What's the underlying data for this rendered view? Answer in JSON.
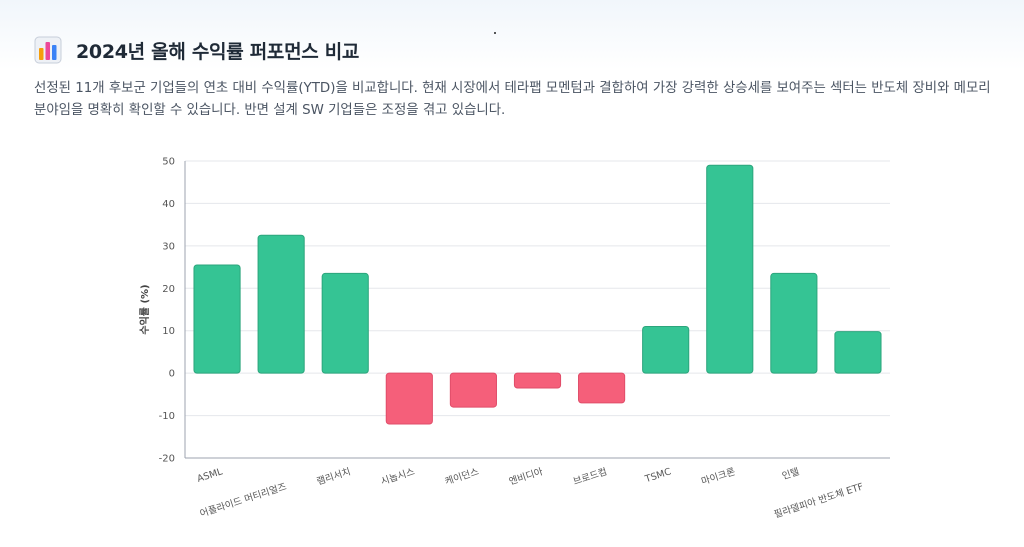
{
  "header": {
    "title": "2024년 올해 수익률 퍼포먼스 비교",
    "icon": "bar-chart-icon",
    "description": "선정된 11개 후보군 기업들의 연초 대비 수익률(YTD)을 비교합니다. 현재 시장에서 테라팹 모멘텀과 결합하여 가장 강력한 상승세를 보여주는 섹터는 반도체 장비와 메모리 분야임을 명확히 확인할 수 있습니다. 반면 설계 SW 기업들은 조정을 겪고 있습니다."
  },
  "colors": {
    "positive": "#35c494",
    "negative": "#f55f7a",
    "grid": "#e5e7eb",
    "axis": "#9ca3af"
  },
  "chart_data": {
    "type": "bar",
    "title": "",
    "xlabel": "",
    "ylabel": "수익률 (%)",
    "ylim": [
      -20,
      50
    ],
    "yticks": [
      50,
      40,
      30,
      20,
      10,
      0,
      -10,
      -20
    ],
    "grid": true,
    "categories": [
      "ASML",
      "어플라이드 머티리얼즈",
      "램리서치",
      "시놉시스",
      "케이던스",
      "엔비디아",
      "브로드컴",
      "TSMC",
      "마이크론",
      "인텔",
      "필라델피아 반도체 ETF"
    ],
    "values": [
      25.5,
      32.5,
      23.5,
      -12,
      -8,
      -3.5,
      -7,
      11,
      49,
      23.5,
      9.8
    ]
  }
}
